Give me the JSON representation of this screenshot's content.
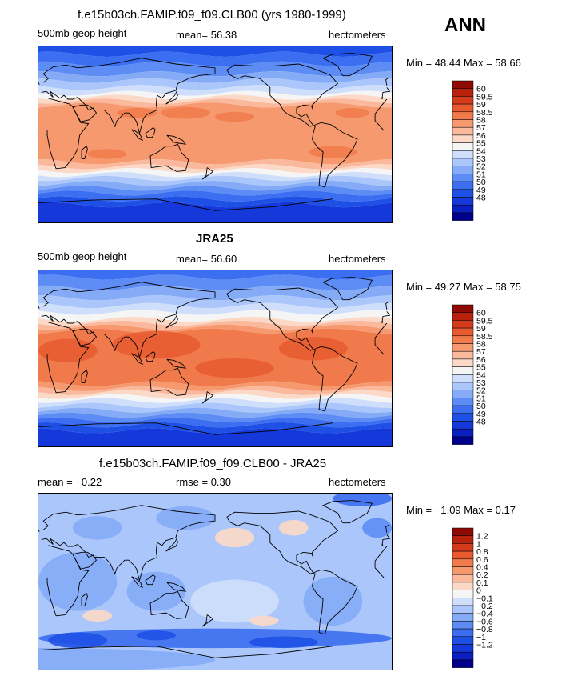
{
  "season": "ANN",
  "colors": {
    "abs": [
      "#00008b",
      "#0a1fbf",
      "#1438d9",
      "#1e50e6",
      "#3b6ef0",
      "#5d8cf4",
      "#85abf7",
      "#aac6fa",
      "#cfdffb",
      "#f5f5f5",
      "#fcd9c7",
      "#fab89c",
      "#f6996f",
      "#f07a4b",
      "#e85a30",
      "#d43a1c",
      "#b8210e",
      "#8f0a05"
    ],
    "diff": [
      "#00008b",
      "#0a1fbf",
      "#1438d9",
      "#1e50e6",
      "#3b6ef0",
      "#5d8cf4",
      "#85abf7",
      "#aac6fa",
      "#cfdffb",
      "#f5f5f5",
      "#fcd9c7",
      "#fab89c",
      "#f6996f",
      "#f07a4b",
      "#e85a30",
      "#d43a1c",
      "#b8210e",
      "#8f0a05"
    ]
  },
  "panels": [
    {
      "title": "f.e15b03ch.FAMIP.f09_f09.CLB00 (yrs 1980-1999)",
      "left": "500mb geop height",
      "center": "mean=  56.38",
      "units": "hectometers",
      "minmax": "Min =  48.44  Max =  58.66"
    },
    {
      "title": "JRA25",
      "left": "500mb geop height",
      "center": "mean=  56.60",
      "units": "hectometers",
      "minmax": "Min =  49.27  Max =  58.75"
    },
    {
      "title": "f.e15b03ch.FAMIP.f09_f09.CLB00 - JRA25",
      "left": "mean =  −0.22",
      "center": "rmse =   0.30",
      "units": "hectometers",
      "minmax": "Min =  −1.09  Max =   0.17"
    }
  ],
  "chart_data": [
    {
      "type": "heatmap",
      "title": "f.e15b03ch.FAMIP.f09_f09.CLB00 (yrs 1980-1999)",
      "variable": "500mb geop height",
      "units": "hectometers",
      "mean": 56.38,
      "min": 48.44,
      "max": 58.66,
      "x": "longitude 0-360",
      "y": "latitude -90 to 90",
      "levels": [
        "48",
        "49",
        "50",
        "51",
        "52",
        "53",
        "54",
        "55",
        "56",
        "57",
        "58",
        "58.5",
        "59",
        "59.5",
        "60"
      ]
    },
    {
      "type": "heatmap",
      "title": "JRA25",
      "variable": "500mb geop height",
      "units": "hectometers",
      "mean": 56.6,
      "min": 49.27,
      "max": 58.75,
      "x": "longitude 0-360",
      "y": "latitude -90 to 90",
      "levels": [
        "48",
        "49",
        "50",
        "51",
        "52",
        "53",
        "54",
        "55",
        "56",
        "57",
        "58",
        "58.5",
        "59",
        "59.5",
        "60"
      ]
    },
    {
      "type": "heatmap",
      "title": "f.e15b03ch.FAMIP.f09_f09.CLB00 - JRA25",
      "units": "hectometers",
      "mean": -0.22,
      "rmse": 0.3,
      "min": -1.09,
      "max": 0.17,
      "x": "longitude 0-360",
      "y": "latitude -90 to 90",
      "levels": [
        "−1.2",
        "−1",
        "−0.8",
        "−0.6",
        "−0.4",
        "−0.2",
        "−0.1",
        "0",
        "0.1",
        "0.2",
        "0.4",
        "0.6",
        "0.8",
        "1",
        "1.2"
      ]
    }
  ]
}
